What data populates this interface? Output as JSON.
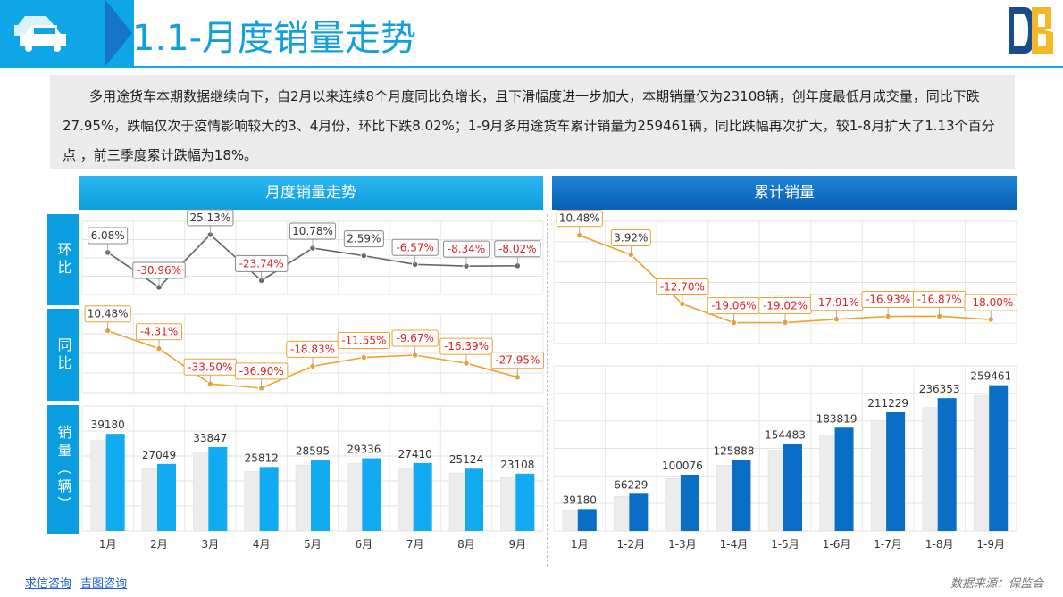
{
  "header": {
    "title": "1.1-月度销量走势"
  },
  "summary": "多用途货车本期数据继续向下，自2月以来连续8个月度同比负增长，且下滑幅度进一步加大，本期销量仅为23108辆，创年度最低月成交量，同比下跌27.95%，跌幅仅次于疫情影响较大的3、4月份，环比下跌8.02%；1-9月多用途货车累计销量为259461辆，同比跌幅再次扩大，较1-8月扩大了1.13个百分点 ，前三季度累计跌幅为18%。",
  "panels": {
    "left_title": "月度销量走势",
    "right_title": "累计销量"
  },
  "row_labels": {
    "mom": "环比",
    "yoy": "同比",
    "sales": "销量（辆）"
  },
  "footer": {
    "link1": "求信咨询",
    "link2": "吉图咨询",
    "source": "数据来源：保监会"
  },
  "colors": {
    "accent": "#0ea6e6",
    "orange": "#f0a030",
    "gray_line": "#666666",
    "blue_bar": "#12aaf0",
    "dark_blue_bar": "#0a6ec6",
    "neg_text": "#e02020"
  },
  "chart_data": [
    {
      "type": "line",
      "id": "mom",
      "categories": [
        "1月",
        "2月",
        "3月",
        "4月",
        "5月",
        "6月",
        "7月",
        "8月",
        "9月"
      ],
      "values": [
        6.08,
        -30.96,
        25.13,
        -23.74,
        10.78,
        2.59,
        -6.57,
        -8.34,
        -8.02
      ],
      "labels": [
        "6.08%",
        "-30.96%",
        "25.13%",
        "-23.74%",
        "10.78%",
        "2.59%",
        "-6.57%",
        "-8.34%",
        "-8.02%"
      ]
    },
    {
      "type": "line",
      "id": "yoy",
      "categories": [
        "1月",
        "2月",
        "3月",
        "4月",
        "5月",
        "6月",
        "7月",
        "8月",
        "9月"
      ],
      "values": [
        10.48,
        -4.31,
        -33.5,
        -36.9,
        -18.83,
        -11.55,
        -9.67,
        -16.39,
        -27.95
      ],
      "labels": [
        "10.48%",
        "-4.31%",
        "-33.50%",
        "-36.90%",
        "-18.83%",
        "-11.55%",
        "-9.67%",
        "-16.39%",
        "-27.95%"
      ]
    },
    {
      "type": "bar",
      "id": "monthly_sales",
      "categories": [
        "1月",
        "2月",
        "3月",
        "4月",
        "5月",
        "6月",
        "7月",
        "8月",
        "9月"
      ],
      "values": [
        39180,
        27049,
        33847,
        25812,
        28595,
        29336,
        27410,
        25124,
        23108
      ]
    },
    {
      "type": "line",
      "id": "cum_yoy",
      "categories": [
        "1月",
        "1-2月",
        "1-3月",
        "1-4月",
        "1-5月",
        "1-6月",
        "1-7月",
        "1-8月",
        "1-9月"
      ],
      "values": [
        10.48,
        3.92,
        -12.7,
        -19.06,
        -19.02,
        -17.91,
        -16.93,
        -16.87,
        -18.0
      ],
      "labels": [
        "10.48%",
        "3.92%",
        "-12.70%",
        "-19.06%",
        "-19.02%",
        "-17.91%",
        "-16.93%",
        "-16.87%",
        "-18.00%"
      ]
    },
    {
      "type": "bar",
      "id": "cum_sales",
      "categories": [
        "1月",
        "1-2月",
        "1-3月",
        "1-4月",
        "1-5月",
        "1-6月",
        "1-7月",
        "1-8月",
        "1-9月"
      ],
      "values": [
        39180,
        66229,
        100076,
        125888,
        154483,
        183819,
        211229,
        236353,
        259461
      ]
    }
  ]
}
